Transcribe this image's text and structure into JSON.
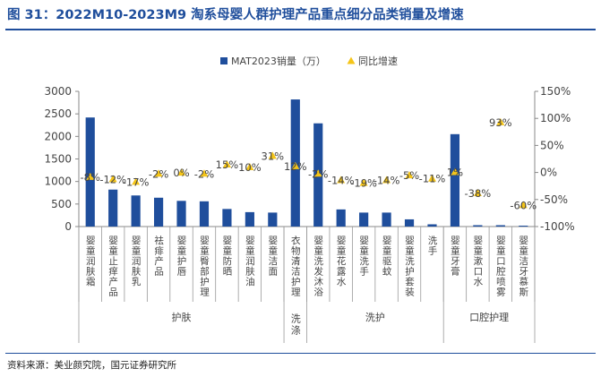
{
  "figure": {
    "title": "图 31：2022M10-2023M9 淘系母婴人群护理产品重点细分品类销量及增速",
    "source": "资料来源：美业颜究院，国元证券研究所"
  },
  "chart_data": {
    "type": "bar",
    "title": "",
    "categories": [
      "婴童润肤霜",
      "婴童止痒产品",
      "婴童润肤乳",
      "祛痱产品",
      "婴童护唇",
      "婴童臀部护理",
      "婴童防晒",
      "婴童润肤油",
      "婴童洁面",
      "衣物清洁护理",
      "婴童洗发沐浴",
      "婴童花露水",
      "婴童洗手",
      "婴童驱蚊",
      "婴童洗护套装",
      "洗手",
      "婴童牙膏",
      "婴童漱口水",
      "婴童口腔喷雾",
      "婴童洁牙慕斯"
    ],
    "groups": [
      {
        "label": "护肤",
        "from": 0,
        "to": 8
      },
      {
        "label": "洗涤",
        "from": 9,
        "to": 9
      },
      {
        "label": "洗护",
        "from": 10,
        "to": 15
      },
      {
        "label": "口腔护理",
        "from": 16,
        "to": 19
      }
    ],
    "series": [
      {
        "name": "MAT2023销量（万）",
        "type": "bar",
        "axis": "left",
        "color": "#1f4e9c",
        "values": [
          2420,
          820,
          690,
          640,
          570,
          560,
          390,
          320,
          310,
          2820,
          2290,
          380,
          310,
          310,
          160,
          50,
          2050,
          30,
          30,
          20
        ]
      },
      {
        "name": "同比增速",
        "type": "scatter",
        "axis": "right",
        "color": "#f5c518",
        "marker": "triangle",
        "values": [
          -8,
          -12,
          -17,
          -2,
          0,
          -2,
          15,
          10,
          31,
          12,
          -2,
          -14,
          -19,
          -14,
          -5,
          -11,
          1,
          -38,
          93,
          -60
        ],
        "labels": [
          "-8%",
          "-12%",
          "-17%",
          "-2%",
          "0%",
          "-2%",
          "15%",
          "10%",
          "31%",
          "12%",
          "-2%",
          "-14%",
          "-19%",
          "-14%",
          "-5%",
          "-11%",
          "1%",
          "-38%",
          "93%",
          "-60%"
        ]
      }
    ],
    "y_left": {
      "min": 0,
      "max": 3000,
      "ticks": [
        "0",
        "500",
        "1000",
        "1500",
        "2000",
        "2500",
        "3000"
      ]
    },
    "y_right": {
      "min": -100,
      "max": 150,
      "ticks": [
        "-100%",
        "-50%",
        "0%",
        "50%",
        "100%",
        "150%"
      ]
    },
    "legend": "top-center",
    "grid": false
  }
}
